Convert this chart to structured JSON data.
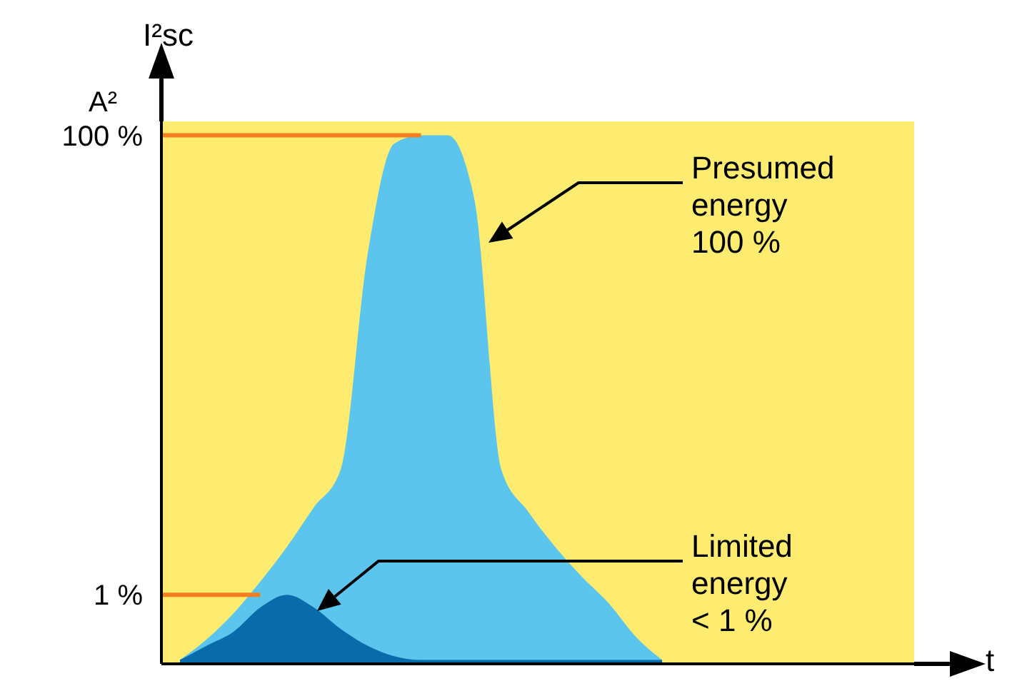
{
  "chart_data": {
    "type": "area",
    "ylabel": "I²sc A²",
    "log": "y",
    "ylim": [
      0.5,
      115
    ],
    "yticks": [
      {
        "value": 100,
        "label": "100 %"
      },
      {
        "value": 1,
        "label": "1 %"
      }
    ],
    "tick_labels": "y",
    "grid": false,
    "categories": [
      null,
      null,
      null,
      null,
      null,
      null,
      null,
      null,
      null,
      null,
      null,
      null,
      null,
      null,
      null,
      null,
      null,
      null,
      null
    ],
    "series": [
      {
        "color": "#5bc5ee",
        "values": [
          0.52,
          0.64,
          0.83,
          1.14,
          1.62,
          2.4,
          3.5,
          30,
          92,
          100,
          100,
          52,
          3.5,
          2.3,
          1.62,
          1.2,
          0.92,
          0.66,
          0.52
        ]
      },
      {
        "color": "#0a6bab",
        "values": [
          0.52,
          0.6,
          0.69,
          0.88,
          1,
          0.88,
          0.71,
          0.6,
          0.54,
          0.52,
          0.52,
          0.52,
          0.52,
          0.52,
          0.52,
          0.52,
          0.52,
          0.52,
          0.52
        ]
      }
    ],
    "ref_lines": [
      {
        "axis": "y",
        "value": 100,
        "color": "#f47f20"
      },
      {
        "axis": "y",
        "value": 1,
        "color": "#f47f20"
      }
    ],
    "annotations": [
      "Presumed\nenergy\n100 %",
      "Limited\nenergy\n< 1 %",
      "t"
    ]
  }
}
